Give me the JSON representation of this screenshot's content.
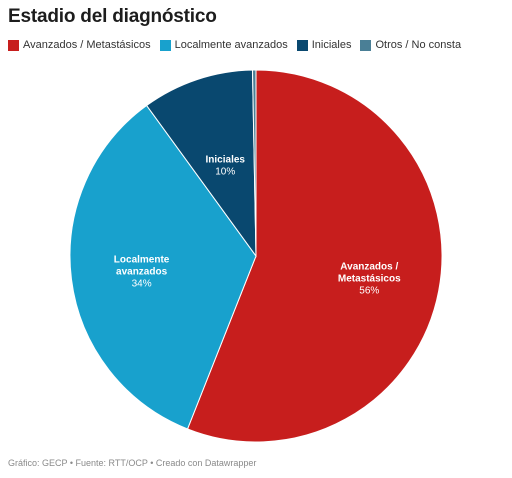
{
  "title": "Estadio del diagnóstico",
  "footer": "Gráfico: GECP • Fuente: RTT/OCP • Creado con Datawrapper",
  "chart_data": {
    "type": "pie",
    "title": "Estadio del diagnóstico",
    "slices": [
      {
        "label": "Avanzados / Metastásicos",
        "chart_label": [
          "Avanzados /",
          "Metastásicos"
        ],
        "value": 56,
        "display": "56%",
        "color": "#c71e1d"
      },
      {
        "label": "Localmente avanzados",
        "chart_label": [
          "Localmente",
          "avanzados"
        ],
        "value": 34,
        "display": "34%",
        "color": "#18a1cd"
      },
      {
        "label": "Iniciales",
        "chart_label": [
          "Iniciales"
        ],
        "value": 9.7,
        "display": "10%",
        "color": "#09486f"
      },
      {
        "label": "Otros / No consta",
        "chart_label": [],
        "value": 0.3,
        "display": "",
        "color": "#4a7f96"
      }
    ],
    "legend_position": "top-left"
  }
}
